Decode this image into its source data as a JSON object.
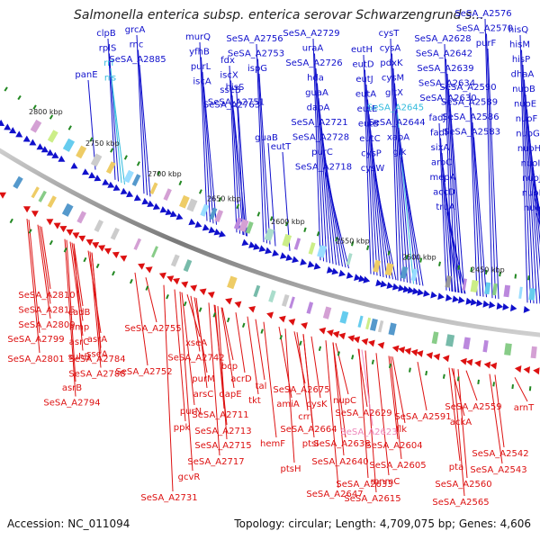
{
  "title": "Salmonella enterica subsp. enterica serovar Schwarzengrund s...",
  "footer": {
    "accession": "Accession: NC_011094",
    "summary": "Topology: circular; Length: 4,709,075 bp; Genes: 4,606"
  },
  "colors": {
    "forward": "#1010cc",
    "reverse": "#dd1111",
    "rna": "#33bbdd",
    "pseudo": "#ee88bb",
    "ring": "#888888",
    "tick": "#228822"
  },
  "kbp_labels": [
    "2800 kbp",
    "2750 kbp",
    "2700 kbp",
    "2650 kbp",
    "2600 kbp",
    "2550 kbp",
    "2500 kbp",
    "2450 kbp"
  ],
  "top_labels": [
    {
      "text": "clpB",
      "type": "forward"
    },
    {
      "text": "rplS",
      "type": "forward"
    },
    {
      "text": "rrf",
      "type": "rna"
    },
    {
      "text": "rrs",
      "type": "rna"
    },
    {
      "text": "grcA",
      "type": "forward"
    },
    {
      "text": "rnc",
      "type": "forward"
    },
    {
      "text": "SeSA_A2885",
      "type": "forward"
    },
    {
      "text": "panE",
      "type": "forward"
    },
    {
      "text": "murQ",
      "type": "forward"
    },
    {
      "text": "yfhB",
      "type": "forward"
    },
    {
      "text": "purL",
      "type": "forward"
    },
    {
      "text": "iscA",
      "type": "forward"
    },
    {
      "text": "fdx",
      "type": "forward"
    },
    {
      "text": "iscX",
      "type": "forward"
    },
    {
      "text": "sseB",
      "type": "forward"
    },
    {
      "text": "SeSA_A2763",
      "type": "forward"
    },
    {
      "text": "SeSA_A2756",
      "type": "forward"
    },
    {
      "text": "SeSA_A2753",
      "type": "forward"
    },
    {
      "text": "ispG",
      "type": "forward"
    },
    {
      "text": "hisS",
      "type": "forward"
    },
    {
      "text": "SeSA_A2751",
      "type": "forward"
    },
    {
      "text": "guaB",
      "type": "forward"
    },
    {
      "text": "SeSA_A2729",
      "type": "forward"
    },
    {
      "text": "uraA",
      "type": "forward"
    },
    {
      "text": "SeSA_A2726",
      "type": "forward"
    },
    {
      "text": "hda",
      "type": "forward"
    },
    {
      "text": "guaA",
      "type": "forward"
    },
    {
      "text": "dapA",
      "type": "forward"
    },
    {
      "text": "SeSA_A2721",
      "type": "forward"
    },
    {
      "text": "SeSA_A2728",
      "type": "forward"
    },
    {
      "text": "purC",
      "type": "forward"
    },
    {
      "text": "SeSA_A2718",
      "type": "forward"
    },
    {
      "text": "eutT",
      "type": "forward"
    },
    {
      "text": "eutH",
      "type": "forward"
    },
    {
      "text": "eutD",
      "type": "forward"
    },
    {
      "text": "eutJ",
      "type": "forward"
    },
    {
      "text": "eutA",
      "type": "forward"
    },
    {
      "text": "eutE",
      "type": "forward"
    },
    {
      "text": "eutB",
      "type": "forward"
    },
    {
      "text": "eutC",
      "type": "forward"
    },
    {
      "text": "cysP",
      "type": "forward"
    },
    {
      "text": "cysW",
      "type": "forward"
    },
    {
      "text": "cysT",
      "type": "forward"
    },
    {
      "text": "cysA",
      "type": "forward"
    },
    {
      "text": "pdxK",
      "type": "forward"
    },
    {
      "text": "cysM",
      "type": "forward"
    },
    {
      "text": "gltX",
      "type": "forward"
    },
    {
      "text": "SeSA_A2645",
      "type": "rna"
    },
    {
      "text": "SeSA_A2644",
      "type": "forward"
    },
    {
      "text": "xapA",
      "type": "forward"
    },
    {
      "text": "glk",
      "type": "forward"
    },
    {
      "text": "SeSA_A2628",
      "type": "forward"
    },
    {
      "text": "SeSA_A2642",
      "type": "forward"
    },
    {
      "text": "SeSA_A2639",
      "type": "forward"
    },
    {
      "text": "SeSA_A2634",
      "type": "forward"
    },
    {
      "text": "SeSA_A2630",
      "type": "forward"
    },
    {
      "text": "fadJ",
      "type": "forward"
    },
    {
      "text": "fadI",
      "type": "forward"
    },
    {
      "text": "sixA",
      "type": "forward"
    },
    {
      "text": "aroC",
      "type": "forward"
    },
    {
      "text": "mepA",
      "type": "forward"
    },
    {
      "text": "accD",
      "type": "forward"
    },
    {
      "text": "truA",
      "type": "forward"
    },
    {
      "text": "SeSA_A2576",
      "type": "forward"
    },
    {
      "text": "SeSA_A2570",
      "type": "forward"
    },
    {
      "text": "purF",
      "type": "forward"
    },
    {
      "text": "SeSA_A2590",
      "type": "forward"
    },
    {
      "text": "SeSA_A2589",
      "type": "forward"
    },
    {
      "text": "SeSA_A2586",
      "type": "forward"
    },
    {
      "text": "SeSA_A2583",
      "type": "forward"
    },
    {
      "text": "hisQ",
      "type": "forward"
    },
    {
      "text": "hisM",
      "type": "forward"
    },
    {
      "text": "hisP",
      "type": "forward"
    },
    {
      "text": "dhaA",
      "type": "forward"
    },
    {
      "text": "nuoB",
      "type": "forward"
    },
    {
      "text": "nuoE",
      "type": "forward"
    },
    {
      "text": "nuoF",
      "type": "forward"
    },
    {
      "text": "nuoG",
      "type": "forward"
    },
    {
      "text": "nuoH",
      "type": "forward"
    },
    {
      "text": "nuoI",
      "type": "forward"
    },
    {
      "text": "nuoJ",
      "type": "forward"
    },
    {
      "text": "nuoK",
      "type": "forward"
    },
    {
      "text": "nuoL",
      "type": "forward"
    },
    {
      "text": "nuoM",
      "type": "forward"
    },
    {
      "text": "nuoN",
      "type": "forward"
    }
  ],
  "bottom_labels": [
    {
      "text": "SeSA_A2810",
      "type": "reverse"
    },
    {
      "text": "SeSA_A2815",
      "type": "reverse"
    },
    {
      "text": "SeSA_A2809",
      "type": "reverse"
    },
    {
      "text": "cadB",
      "type": "reverse"
    },
    {
      "text": "hmp",
      "type": "reverse"
    },
    {
      "text": "asrC",
      "type": "reverse"
    },
    {
      "text": "suhB",
      "type": "reverse"
    },
    {
      "text": "SeSA_A2799",
      "type": "reverse"
    },
    {
      "text": "asrA",
      "type": "reverse"
    },
    {
      "text": "sseA",
      "type": "reverse"
    },
    {
      "text": "SeSA_A2755",
      "type": "reverse"
    },
    {
      "text": "SeSA_A2801",
      "type": "reverse"
    },
    {
      "text": "SeSA_A2784",
      "type": "reverse"
    },
    {
      "text": "SeSA_A2788",
      "type": "reverse"
    },
    {
      "text": "SeSA_A2752",
      "type": "reverse"
    },
    {
      "text": "asrB",
      "type": "reverse"
    },
    {
      "text": "SeSA_A2794",
      "type": "reverse"
    },
    {
      "text": "xseA",
      "type": "reverse"
    },
    {
      "text": "SeSA_A2742",
      "type": "reverse"
    },
    {
      "text": "bcp",
      "type": "reverse"
    },
    {
      "text": "purM",
      "type": "reverse"
    },
    {
      "text": "acrD",
      "type": "reverse"
    },
    {
      "text": "arsC",
      "type": "reverse"
    },
    {
      "text": "dapE",
      "type": "reverse"
    },
    {
      "text": "tal",
      "type": "reverse"
    },
    {
      "text": "tkt",
      "type": "reverse"
    },
    {
      "text": "purN",
      "type": "reverse"
    },
    {
      "text": "SeSA_A2711",
      "type": "reverse"
    },
    {
      "text": "ppk",
      "type": "reverse"
    },
    {
      "text": "SeSA_A2713",
      "type": "reverse"
    },
    {
      "text": "SeSA_A2715",
      "type": "reverse"
    },
    {
      "text": "SeSA_A2717",
      "type": "reverse"
    },
    {
      "text": "gcvR",
      "type": "reverse"
    },
    {
      "text": "SeSA_A2731",
      "type": "reverse"
    },
    {
      "text": "SeSA_A2675",
      "type": "reverse"
    },
    {
      "text": "amiA",
      "type": "reverse"
    },
    {
      "text": "cysK",
      "type": "reverse"
    },
    {
      "text": "crr",
      "type": "reverse"
    },
    {
      "text": "hemF",
      "type": "reverse"
    },
    {
      "text": "SeSA_A2664",
      "type": "reverse"
    },
    {
      "text": "ptsI",
      "type": "reverse"
    },
    {
      "text": "SeSA_A2638",
      "type": "reverse"
    },
    {
      "text": "ptsH",
      "type": "reverse"
    },
    {
      "text": "SeSA_A2640",
      "type": "reverse"
    },
    {
      "text": "SeSA_A2647",
      "type": "reverse"
    },
    {
      "text": "SeSA_A2633",
      "type": "reverse"
    },
    {
      "text": "SeSA_A2615",
      "type": "reverse"
    },
    {
      "text": "nupC",
      "type": "reverse"
    },
    {
      "text": "SeSA_A2629",
      "type": "reverse"
    },
    {
      "text": "SeSA_A2623",
      "type": "pseudo"
    },
    {
      "text": "flk",
      "type": "reverse"
    },
    {
      "text": "SeSA_A2604",
      "type": "reverse"
    },
    {
      "text": "SeSA_A2605",
      "type": "reverse"
    },
    {
      "text": "mnmC",
      "type": "reverse"
    },
    {
      "text": "SeSA_A2591",
      "type": "reverse"
    },
    {
      "text": "SeSA_A2559",
      "type": "reverse"
    },
    {
      "text": "ackA",
      "type": "reverse"
    },
    {
      "text": "SeSA_A2542",
      "type": "reverse"
    },
    {
      "text": "pta",
      "type": "reverse"
    },
    {
      "text": "SeSA_A2543",
      "type": "reverse"
    },
    {
      "text": "SeSA_A2560",
      "type": "reverse"
    },
    {
      "text": "SeSA_A2565",
      "type": "reverse"
    },
    {
      "text": "arnT",
      "type": "reverse"
    }
  ]
}
